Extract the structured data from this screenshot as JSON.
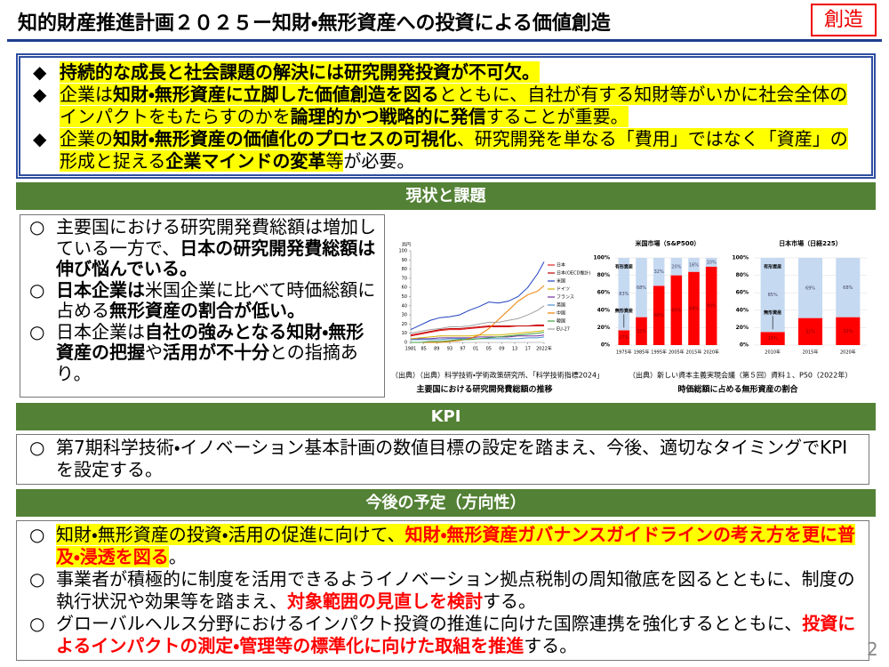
{
  "header": {
    "title": "知的財産推進計画２０２５ー知財・無形資産への投資による価値創造",
    "badge": "創造"
  },
  "summary": [
    {
      "bullet": "◆",
      "runs": [
        {
          "text": "持続的な成長と社会課題の解決には研究開発投資が不可欠。",
          "style": "highlight-bold"
        }
      ]
    },
    {
      "bullet": "◆",
      "runs": [
        {
          "text": "企業は",
          "style": "highlight"
        },
        {
          "text": "知財・無形資産に立脚した価値創造を図る",
          "style": "highlight-bold"
        },
        {
          "text": "とともに、自社が有する知財等がいかに社会全体のインパクトをもたらすのかを",
          "style": "highlight"
        },
        {
          "text": "論理的かつ戦略的に発信",
          "style": "highlight-bold"
        },
        {
          "text": "することが重要。",
          "style": "highlight"
        }
      ]
    },
    {
      "bullet": "◆",
      "runs": [
        {
          "text": "企業の",
          "style": "highlight"
        },
        {
          "text": "知財・無形資産の価値化のプロセスの可視化",
          "style": "highlight-bold"
        },
        {
          "text": "、研究開発を単なる「費用」ではなく「資産」の形成と捉える",
          "style": "highlight"
        },
        {
          "text": "企業マインドの変革",
          "style": "highlight-bold"
        },
        {
          "text": "等",
          "style": "highlight"
        },
        {
          "text": "が必要。",
          "style": "plain"
        }
      ]
    }
  ],
  "sections": [
    {
      "heading": "現状と課題",
      "items": [
        {
          "bullet": "○",
          "runs": [
            {
              "text": "主要国における研究開発費総額は増加している一方で、",
              "style": "plain"
            },
            {
              "text": "日本の研究開発費総額は伸び悩んでいる。",
              "style": "bold"
            }
          ]
        },
        {
          "bullet": "○",
          "runs": [
            {
              "text": "日本企業は",
              "style": "bold"
            },
            {
              "text": "米国企業に比べて時価総額に占める",
              "style": "plain"
            },
            {
              "text": "無形資産の割合が低い。",
              "style": "bold"
            }
          ]
        },
        {
          "bullet": "○",
          "runs": [
            {
              "text": "日本企業は",
              "style": "plain"
            },
            {
              "text": "自社の強みとなる知財・無形資産の把握",
              "style": "bold"
            },
            {
              "text": "や",
              "style": "plain"
            },
            {
              "text": "活用が不十分",
              "style": "bold"
            },
            {
              "text": "との指摘あり。",
              "style": "plain"
            }
          ]
        }
      ]
    },
    {
      "heading": "KPI",
      "items": [
        {
          "bullet": "○",
          "runs": [
            {
              "text": "第7期科学技術・イノベーション基本計画の数値目標の設定を踏まえ、今後、適切なタイミングでKPIを設定する。",
              "style": "plain"
            }
          ]
        }
      ]
    },
    {
      "heading": "今後の予定（方向性）",
      "items": [
        {
          "bullet": "○",
          "runs": [
            {
              "text": "知財・無形資産の投資・活用の促進に向けて、",
              "style": "highlight"
            },
            {
              "text": "知財・無形資産ガバナンスガイドラインの考え方を更に普及・浸透を図る",
              "style": "highlight-red-bold"
            },
            {
              "text": "。",
              "style": "plain"
            }
          ]
        },
        {
          "bullet": "○",
          "runs": [
            {
              "text": "事業者が積極的に制度を活用できるようイノベーション拠点税制の周知徹底を図るとともに、制度の執行状況や効果等を踏まえ、",
              "style": "plain"
            },
            {
              "text": "対象範囲の見直しを検討",
              "style": "red-bold"
            },
            {
              "text": "する。",
              "style": "plain"
            }
          ]
        },
        {
          "bullet": "○",
          "runs": [
            {
              "text": "グローバルヘルス分野におけるインパクト投資の推進に向けた国際連携を強化するとともに、",
              "style": "plain"
            },
            {
              "text": "投資によるインパクトの測定・管理等の標準化に向けた取組を推進",
              "style": "red-bold"
            },
            {
              "text": "する。",
              "style": "plain"
            }
          ]
        }
      ]
    }
  ],
  "page_number": "2",
  "chart_data": [
    {
      "type": "line",
      "caption": "主要国における研究開発費総額の推移",
      "source": "（出典）（出典）科学技術・学術政策研究所、「科学技術指標2024」",
      "ylabel": "兆円",
      "x": [
        1981,
        1984,
        1987,
        1990,
        1993,
        1996,
        1999,
        2002,
        2005,
        2008,
        2011,
        2014,
        2017,
        2020,
        2022
      ],
      "xlim": [
        1981,
        2022
      ],
      "xticks": [
        {
          "value": 1981,
          "label": "1981"
        },
        {
          "value": 1985,
          "label": "85"
        },
        {
          "value": 1989,
          "label": "89"
        },
        {
          "value": 1993,
          "label": "93"
        },
        {
          "value": 1997,
          "label": "97"
        },
        {
          "value": 2001,
          "label": "01"
        },
        {
          "value": 2005,
          "label": "05"
        },
        {
          "value": 2009,
          "label": "09"
        },
        {
          "value": 2013,
          "label": "13"
        },
        {
          "value": 2017,
          "label": "17"
        },
        {
          "value": 2022,
          "label": "2022年"
        }
      ],
      "ylim": [
        0,
        100
      ],
      "yticks": [
        0,
        10,
        20,
        30,
        40,
        50,
        60,
        70,
        80,
        90,
        100
      ],
      "series": [
        {
          "name": "日本",
          "color": "#e02020",
          "values": [
            7,
            9,
            11,
            13,
            14,
            14,
            15,
            16,
            17,
            17,
            17,
            18,
            18,
            18,
            18
          ]
        },
        {
          "name": "日本(OECD推計)",
          "color": "#c00000",
          "values": [
            8,
            10,
            12,
            14,
            15,
            15,
            16,
            17,
            18,
            18,
            18,
            18,
            18,
            19,
            19
          ]
        },
        {
          "name": "米国",
          "color": "#2040c0",
          "values": [
            14,
            19,
            24,
            27,
            28,
            30,
            35,
            39,
            44,
            43,
            45,
            50,
            60,
            75,
            88
          ]
        },
        {
          "name": "ドイツ",
          "color": "#d4b000",
          "values": [
            4,
            5,
            6,
            7,
            7,
            7,
            7,
            8,
            8,
            8,
            9,
            10,
            11,
            12,
            13
          ]
        },
        {
          "name": "フランス",
          "color": "#7030a0",
          "values": [
            3,
            4,
            4,
            5,
            5,
            5,
            5,
            6,
            6,
            6,
            6,
            7,
            7,
            7,
            8
          ]
        },
        {
          "name": "英国",
          "color": "#4a90d0",
          "values": [
            3,
            3,
            3,
            3,
            4,
            4,
            4,
            4,
            4,
            4,
            4,
            4,
            5,
            5,
            6
          ]
        },
        {
          "name": "中国",
          "color": "#f08000",
          "values": [
            0,
            0,
            0,
            0,
            1,
            2,
            4,
            8,
            15,
            25,
            35,
            45,
            52,
            56,
            62
          ]
        },
        {
          "name": "韓国",
          "color": "#40a040",
          "values": [
            0,
            0,
            1,
            1,
            2,
            3,
            3,
            4,
            5,
            6,
            7,
            8,
            9,
            10,
            11
          ]
        },
        {
          "name": "EU-27",
          "color": "#a0a0a0",
          "values": [
            10,
            12,
            14,
            15,
            17,
            17,
            18,
            20,
            22,
            22,
            24,
            26,
            30,
            35,
            40
          ]
        }
      ]
    },
    {
      "type": "bar",
      "stacked": true,
      "title": "米国市場（S&P500）",
      "caption": "時価総額に占める無形資産の割合",
      "source": "（出典）新しい資本主義実現会議（第５回）資料１、P50（2022年）",
      "categories": [
        "1975年",
        "1985年",
        "1995年",
        "2005年",
        "2015年",
        "2020年"
      ],
      "ylim": [
        0,
        100
      ],
      "yticks": [
        {
          "value": 0,
          "label": "0%"
        },
        {
          "value": 20,
          "label": "20%"
        },
        {
          "value": 40,
          "label": "40%"
        },
        {
          "value": 60,
          "label": "60%"
        },
        {
          "value": 80,
          "label": "80%"
        },
        {
          "value": 100,
          "label": "100%"
        }
      ],
      "series": [
        {
          "name": "無形資産",
          "color": "#ff0000",
          "values": [
            17,
            32,
            68,
            80,
            84,
            90
          ],
          "value_labels": [
            "17%",
            "32%",
            "68%",
            "80%",
            "84%",
            "90%"
          ]
        },
        {
          "name": "有形資産",
          "color": "#c5d9f1",
          "values": [
            83,
            68,
            32,
            20,
            16,
            10
          ],
          "value_labels": [
            "83%",
            "68%",
            "32%",
            "20%",
            "16%",
            "10%"
          ]
        }
      ]
    },
    {
      "type": "bar",
      "stacked": true,
      "title": "日本市場（日経225）",
      "categories": [
        "2010年",
        "2015年",
        "2020年"
      ],
      "ylim": [
        0,
        100
      ],
      "yticks": [
        {
          "value": 0,
          "label": "0%"
        },
        {
          "value": 20,
          "label": "20%"
        },
        {
          "value": 40,
          "label": "40%"
        },
        {
          "value": 60,
          "label": "60%"
        },
        {
          "value": 80,
          "label": "80%"
        },
        {
          "value": 100,
          "label": "100%"
        }
      ],
      "series": [
        {
          "name": "無形資産",
          "color": "#ff0000",
          "values": [
            15,
            31,
            32
          ],
          "value_labels": [
            "15%",
            "31%",
            "32%"
          ]
        },
        {
          "name": "有形資産",
          "color": "#c5d9f1",
          "values": [
            85,
            69,
            68
          ],
          "value_labels": [
            "85%",
            "69%",
            "68%"
          ]
        }
      ]
    }
  ]
}
